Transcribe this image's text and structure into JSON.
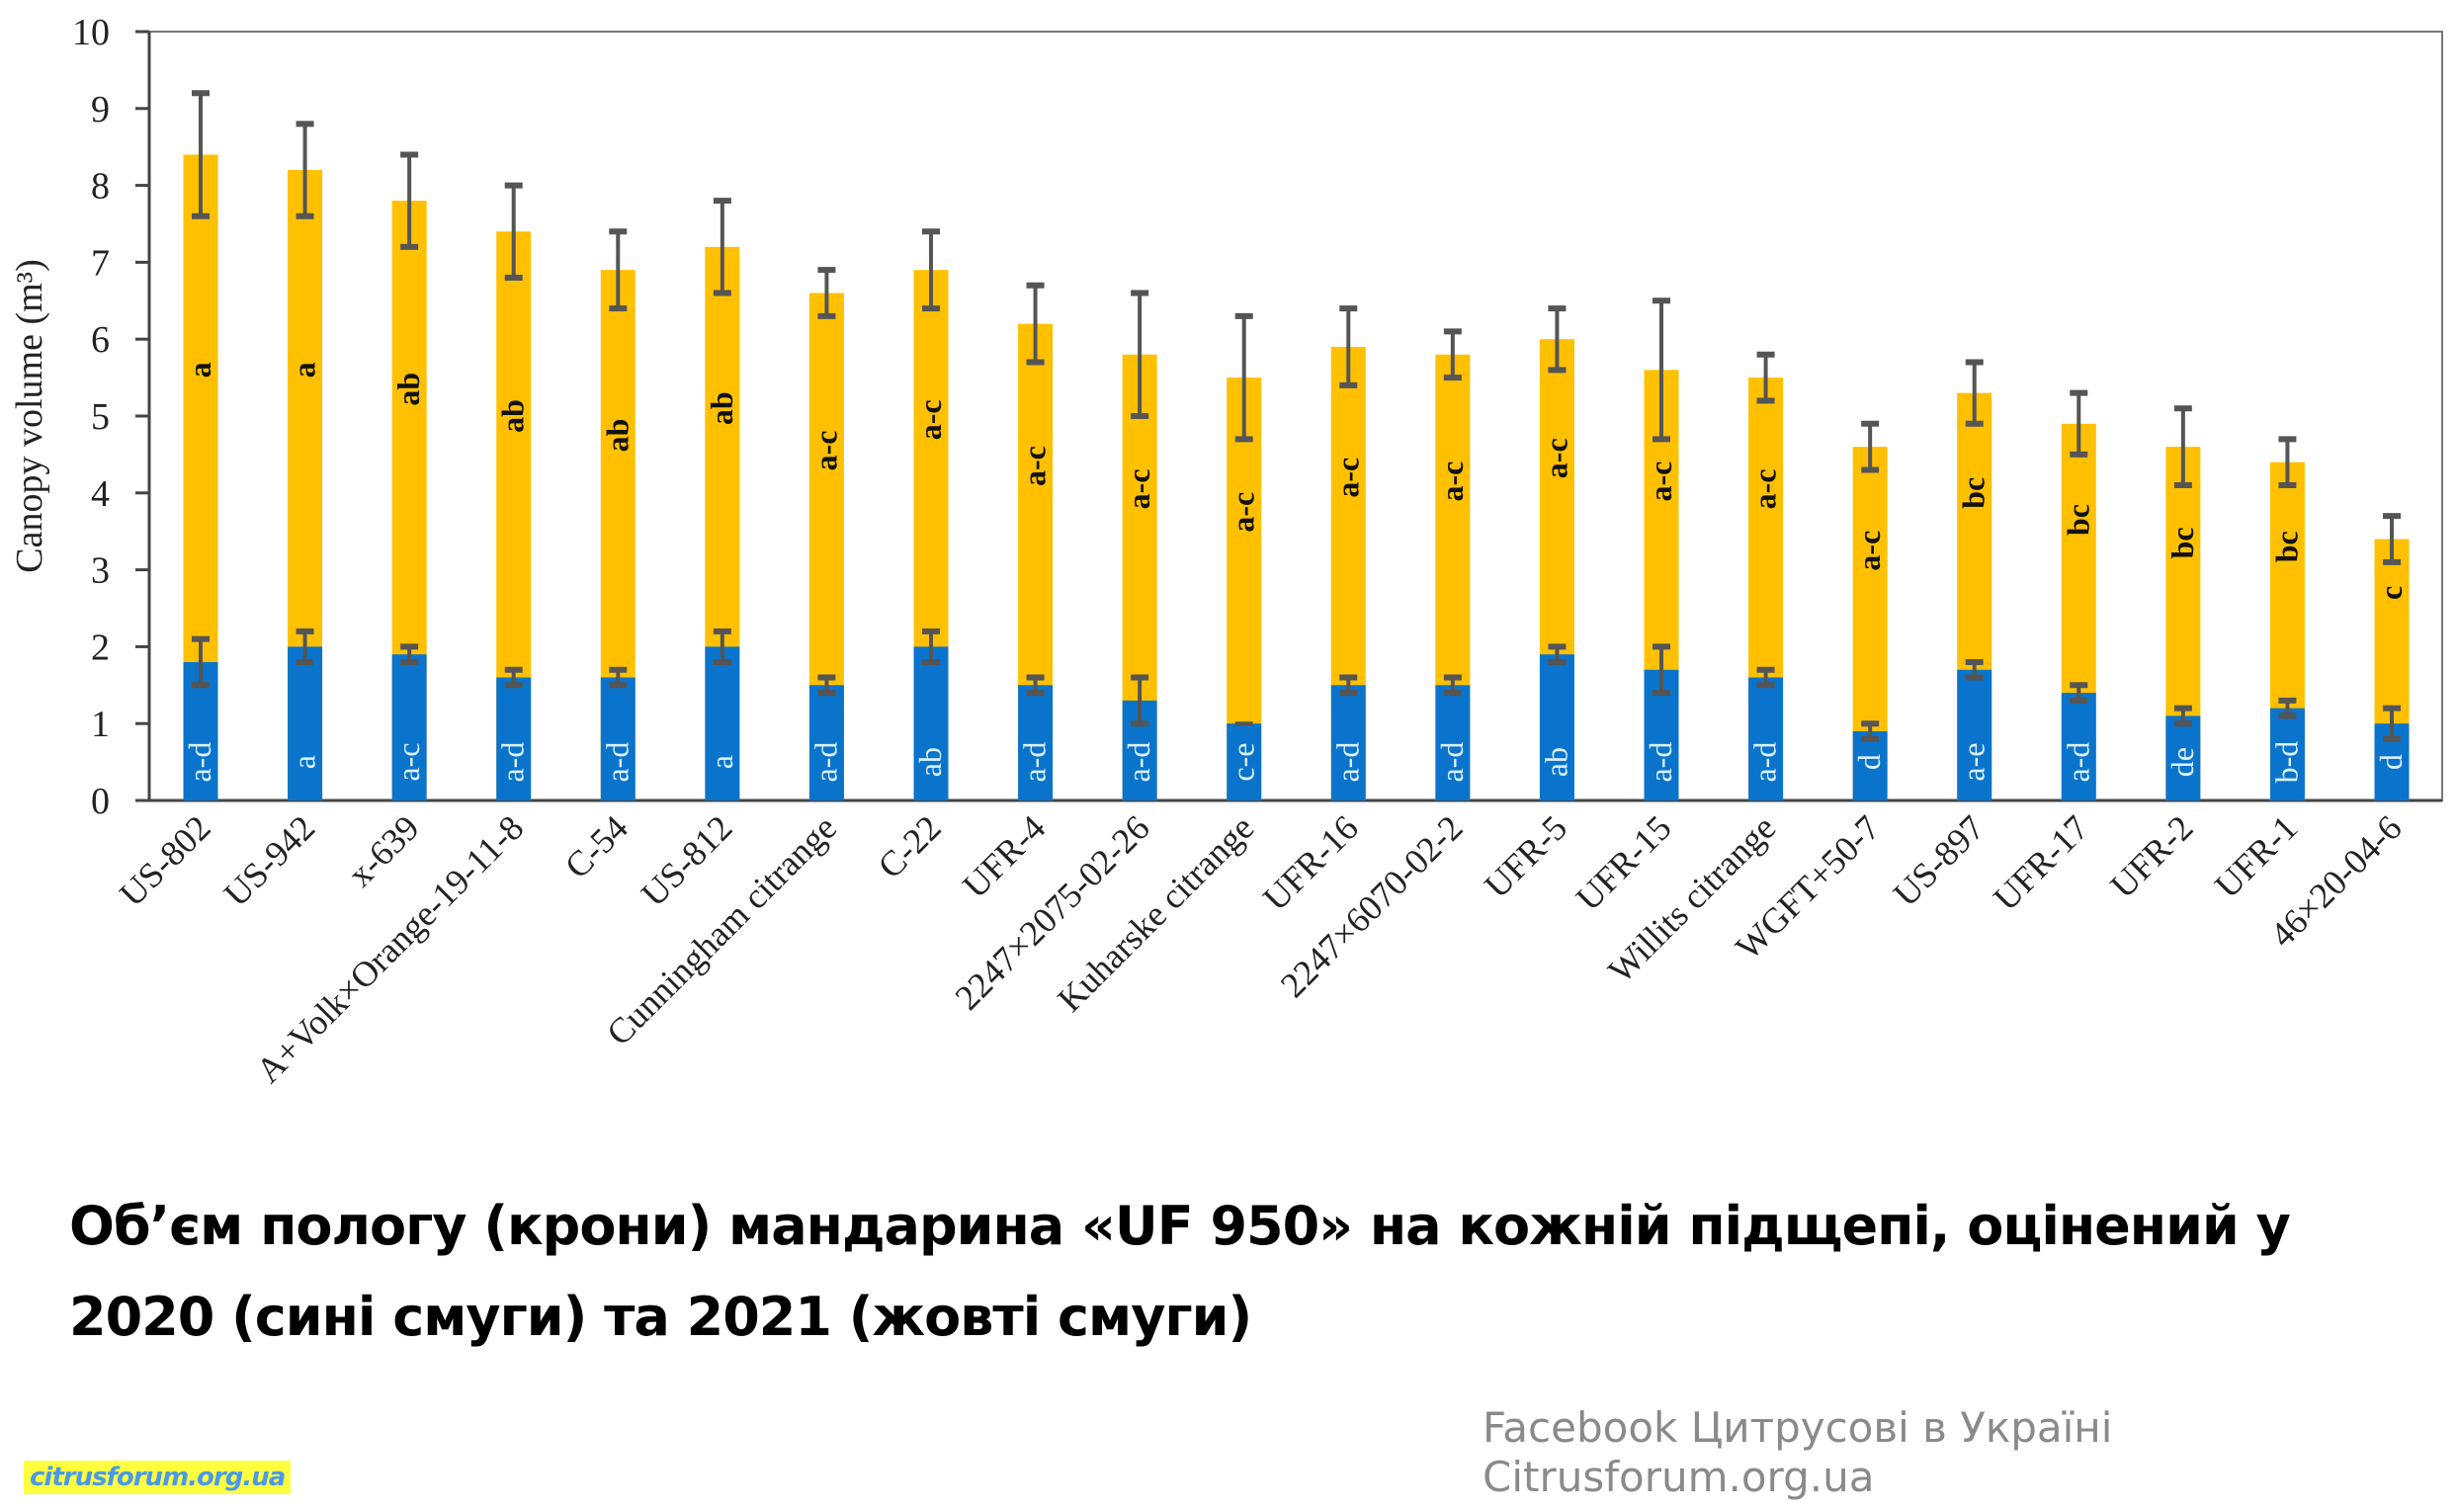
{
  "chart_data": {
    "type": "bar",
    "ylabel": "Canopy volume (m³)",
    "ylim": [
      0,
      10
    ],
    "yticks": [
      "0",
      "1",
      "2",
      "3",
      "4",
      "5",
      "6",
      "7",
      "8",
      "9",
      "10"
    ],
    "grid": false,
    "categories": [
      "US-802",
      "US-942",
      "x-639",
      "A+Volk×Orange-19-11-8",
      "C-54",
      "US-812",
      "Cunningham citrange",
      "C-22",
      "UFR-4",
      "2247×2075-02-26",
      "Kuharske citrange",
      "UFR-16",
      "2247×6070-02-2",
      "UFR-5",
      "UFR-15",
      "Willits citrange",
      "WGFT+50-7",
      "US-897",
      "UFR-17",
      "UFR-2",
      "UFR-1",
      "46×20-04-6"
    ],
    "series": [
      {
        "year": "2020",
        "color": "#0A74CC",
        "values": [
          1.8,
          2.0,
          1.9,
          1.6,
          1.6,
          2.0,
          1.5,
          2.0,
          1.5,
          1.3,
          1.0,
          1.5,
          1.5,
          1.9,
          1.7,
          1.6,
          0.9,
          1.7,
          1.4,
          1.1,
          1.2,
          1.0
        ],
        "errors": [
          0.3,
          0.2,
          0.1,
          0.1,
          0.1,
          0.2,
          0.1,
          0.2,
          0.1,
          0.3,
          0.0,
          0.1,
          0.1,
          0.1,
          0.3,
          0.1,
          0.1,
          0.1,
          0.1,
          0.1,
          0.1,
          0.2
        ],
        "letters": [
          "a-d",
          "a",
          "a-c",
          "a-d",
          "a-d",
          "a",
          "a-d",
          "ab",
          "a-d",
          "a-d",
          "c-e",
          "a-d",
          "a-d",
          "ab",
          "a-d",
          "a-d",
          "d",
          "a-e",
          "a-d",
          "de",
          "b-d",
          "d"
        ]
      },
      {
        "year": "2021",
        "color": "#FFC000",
        "values": [
          8.4,
          8.2,
          7.8,
          7.4,
          6.9,
          7.2,
          6.6,
          6.9,
          6.2,
          5.8,
          5.5,
          5.9,
          5.8,
          6.0,
          5.6,
          5.5,
          4.6,
          5.3,
          4.9,
          4.6,
          4.4,
          3.4
        ],
        "errors": [
          0.8,
          0.6,
          0.6,
          0.6,
          0.5,
          0.6,
          0.3,
          0.5,
          0.5,
          0.8,
          0.8,
          0.5,
          0.3,
          0.4,
          0.9,
          0.3,
          0.3,
          0.4,
          0.4,
          0.5,
          0.3,
          0.3
        ],
        "letters": [
          "a",
          "a",
          "ab",
          "ab",
          "ab",
          "ab",
          "a-c",
          "a-c",
          "a-c",
          "a-c",
          "a-c",
          "a-c",
          "a-c",
          "a-c",
          "a-c",
          "a-c",
          "a-c",
          "bc",
          "bc",
          "bc",
          "bc",
          "c"
        ]
      }
    ],
    "error_bar_color": "#555555"
  },
  "caption": {
    "line1": "Об’єм пологу (крони) мандарина «UF 950» на кожній підщепі, оцінений у",
    "line2": "2020 (сині смуги) та 2021 (жовті смуги)"
  },
  "watermark": {
    "line1": "Facebook Цитрусові в Україні",
    "line2": "Citrusforum.org.ua",
    "logo": "citrusforum.org.ua"
  }
}
